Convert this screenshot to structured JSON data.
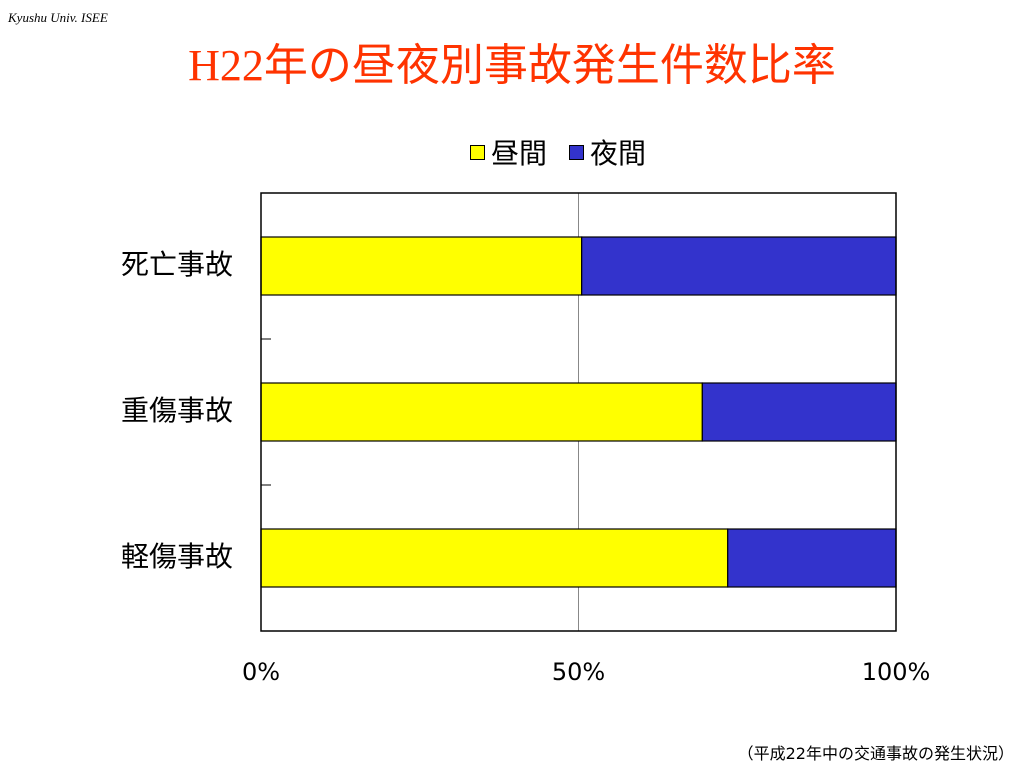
{
  "header": {
    "label": "Kyushu Univ. ISEE"
  },
  "title": "H22年の昼夜別事故発生件数比率",
  "footnote": "（平成22年中の交通事故の発生状況）",
  "chart_data": {
    "type": "bar",
    "orientation": "horizontal",
    "stacked": true,
    "percent": true,
    "categories": [
      "死亡事故",
      "重傷事故",
      "軽傷事故"
    ],
    "series": [
      {
        "name": "昼間",
        "color": "#ffff00",
        "values": [
          50.5,
          69.5,
          73.5
        ]
      },
      {
        "name": "夜間",
        "color": "#3333cc",
        "values": [
          49.5,
          30.5,
          26.5
        ]
      }
    ],
    "xlim": [
      0,
      100
    ],
    "x_ticks": [
      0,
      50,
      100
    ],
    "x_tick_labels": [
      "0%",
      "50%",
      "100%"
    ],
    "grid": "vertical at 50%",
    "legend": "top-center"
  }
}
